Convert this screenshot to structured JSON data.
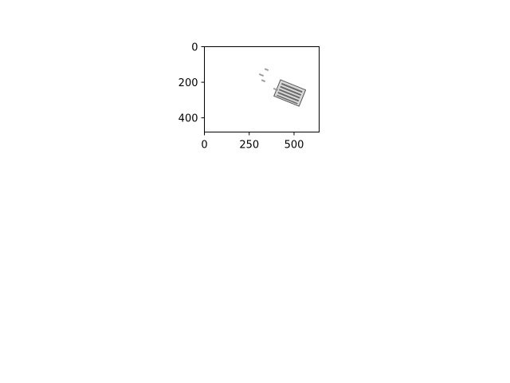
{
  "x_axis": {
    "ticks": [
      {
        "value": 0,
        "label": "0"
      },
      {
        "value": 250,
        "label": "250"
      },
      {
        "value": 500,
        "label": "500"
      }
    ],
    "range": [
      0,
      640
    ]
  },
  "y_axis": {
    "ticks": [
      {
        "value": 0,
        "label": "0"
      },
      {
        "value": 200,
        "label": "200"
      },
      {
        "value": 400,
        "label": "400"
      }
    ],
    "range": [
      480,
      0
    ],
    "inverted": true
  },
  "image": {
    "description_icon": "rotated-screenshot-thumbnail",
    "colors": {
      "frame": "#555555",
      "fill": "#d8d8d8",
      "rows": "#6a6a6a"
    }
  },
  "colors": {
    "axis": "#000000",
    "background": "#ffffff"
  }
}
